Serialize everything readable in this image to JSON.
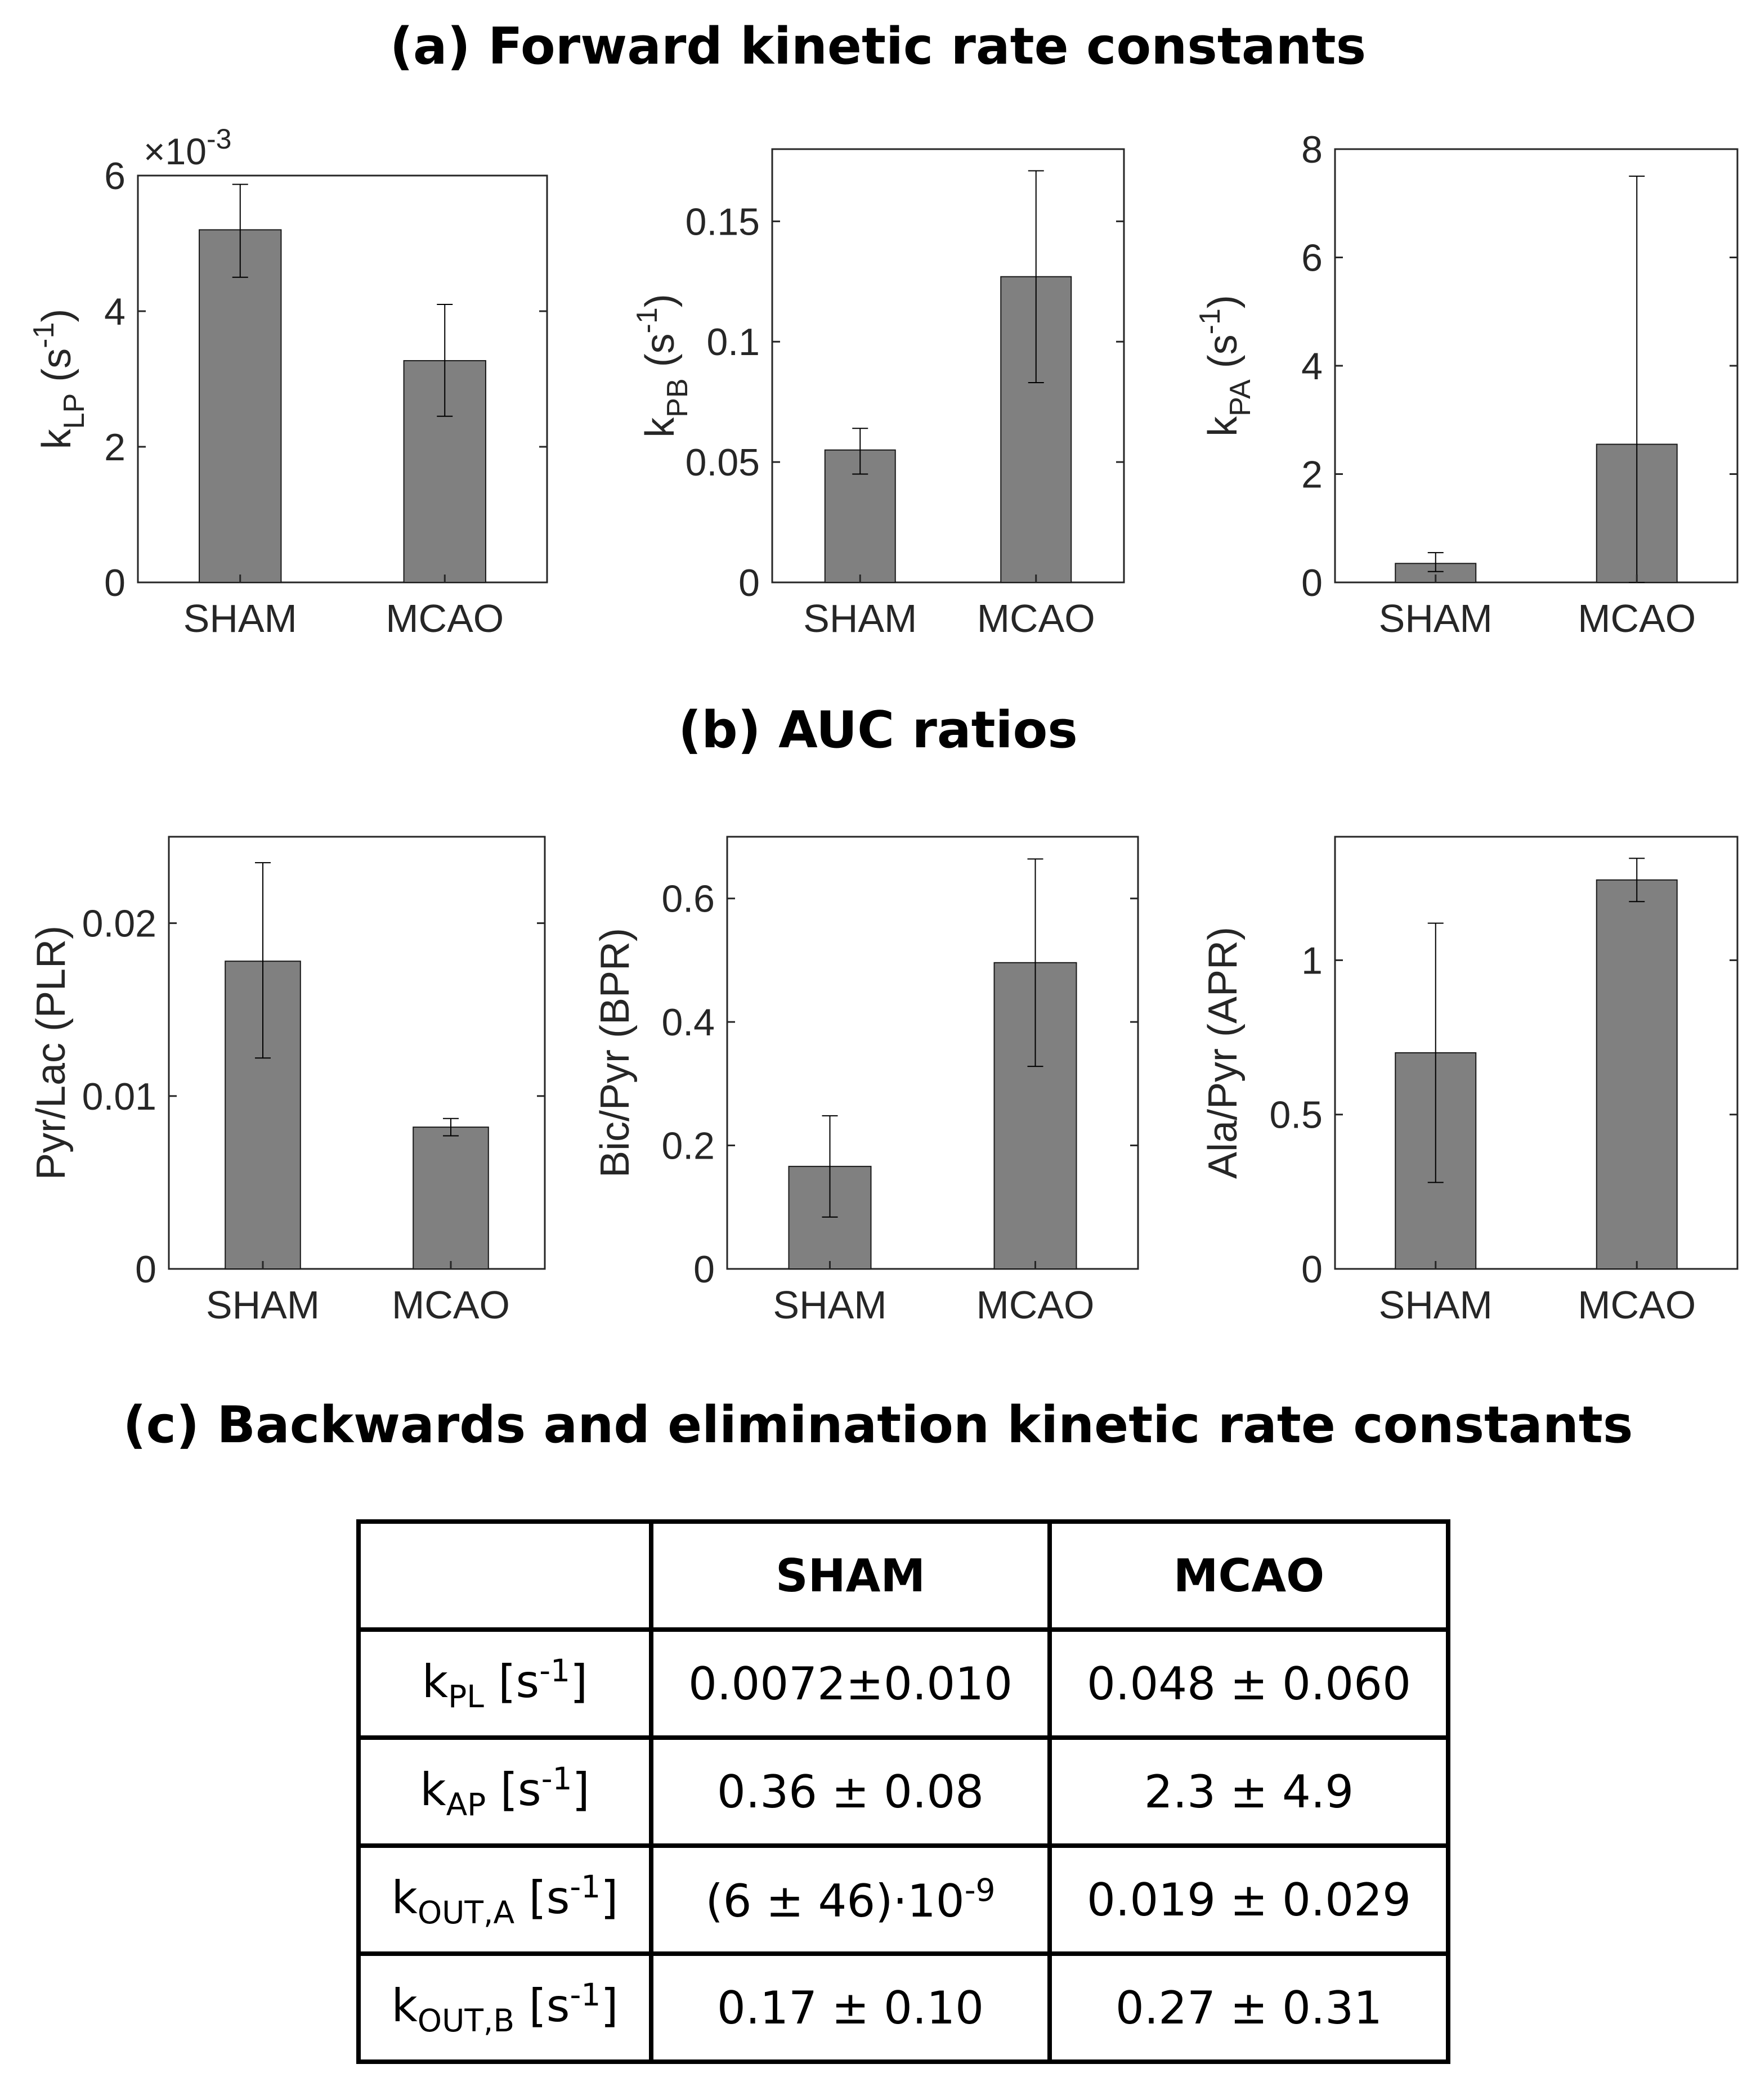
{
  "titles": {
    "a": "(a) Forward kinetic rate constants",
    "b": "(b) AUC ratios",
    "c": "(c) Backwards and elimination kinetic rate constants"
  },
  "colors": {
    "bar": "#808080",
    "axis": "#262626"
  },
  "chart_data": [
    {
      "type": "bar",
      "id": "kLP",
      "title": "",
      "categories": [
        "SHAM",
        "MCAO"
      ],
      "values": [
        5.2,
        3.27
      ],
      "errors": [
        [
          4.5,
          5.87
        ],
        [
          2.45,
          4.1
        ]
      ],
      "ylim": [
        0,
        6
      ],
      "yticks": [
        0,
        2,
        4,
        6
      ],
      "tick_labels": [
        "0",
        "2",
        "4",
        "6"
      ],
      "exponent": "×10",
      "exponent_power": "-3",
      "ylabel": {
        "base": "k",
        "sub": "LP",
        "mid": " (s",
        "sup": "-1",
        "end": ")"
      }
    },
    {
      "type": "bar",
      "id": "kPB",
      "title": "",
      "categories": [
        "SHAM",
        "MCAO"
      ],
      "values": [
        0.055,
        0.127
      ],
      "errors": [
        [
          0.045,
          0.064
        ],
        [
          0.083,
          0.171
        ]
      ],
      "ylim": [
        0,
        0.18
      ],
      "yticks": [
        0,
        0.05,
        0.1,
        0.15
      ],
      "tick_labels": [
        "0",
        "0.05",
        "0.1",
        "0.15"
      ],
      "ylabel": {
        "base": "k",
        "sub": "PB",
        "mid": " (s",
        "sup": "-1",
        "end": ")"
      }
    },
    {
      "type": "bar",
      "id": "kPA",
      "title": "",
      "categories": [
        "SHAM",
        "MCAO"
      ],
      "values": [
        0.35,
        2.55
      ],
      "errors": [
        [
          0.2,
          0.55
        ],
        [
          0,
          7.5
        ]
      ],
      "ylim": [
        0,
        8
      ],
      "yticks": [
        0,
        2,
        4,
        6,
        8
      ],
      "tick_labels": [
        "0",
        "2",
        "4",
        "6",
        "8"
      ],
      "ylabel": {
        "base": "k",
        "sub": "PA",
        "mid": " (s",
        "sup": "-1",
        "end": ")"
      }
    },
    {
      "type": "bar",
      "id": "PLR",
      "title": "",
      "categories": [
        "SHAM",
        "MCAO"
      ],
      "values": [
        0.0178,
        0.0082
      ],
      "errors": [
        [
          0.0122,
          0.0235
        ],
        [
          0.0077,
          0.0087
        ]
      ],
      "ylim": [
        0,
        0.025
      ],
      "yticks": [
        0,
        0.01,
        0.02
      ],
      "tick_labels": [
        "0",
        "0.01",
        "0.02"
      ],
      "ylabel": {
        "base": "Pyr/Lac (PLR)"
      }
    },
    {
      "type": "bar",
      "id": "BPR",
      "title": "",
      "categories": [
        "SHAM",
        "MCAO"
      ],
      "values": [
        0.166,
        0.496
      ],
      "errors": [
        [
          0.084,
          0.248
        ],
        [
          0.328,
          0.664
        ]
      ],
      "ylim": [
        0,
        0.7
      ],
      "yticks": [
        0,
        0.2,
        0.4,
        0.6
      ],
      "tick_labels": [
        "0",
        "0.2",
        "0.4",
        "0.6"
      ],
      "ylabel": {
        "base": "Bic/Pyr (BPR)"
      }
    },
    {
      "type": "bar",
      "id": "APR",
      "title": "",
      "categories": [
        "SHAM",
        "MCAO"
      ],
      "values": [
        0.7,
        1.26
      ],
      "errors": [
        [
          0.28,
          1.12
        ],
        [
          1.19,
          1.33
        ]
      ],
      "ylim": [
        0,
        1.4
      ],
      "yticks": [
        0,
        0.5,
        1
      ],
      "tick_labels": [
        "0",
        "0.5",
        "1"
      ],
      "ylabel": {
        "base": "Ala/Pyr (APR)"
      }
    }
  ],
  "table": {
    "headers": [
      "",
      "SHAM",
      "MCAO"
    ],
    "rows": [
      {
        "param": "k",
        "param_sub": "PL",
        "unit": " [s",
        "unit_sup": "-1",
        "unit_end": "]",
        "sham": "0.0072±0.010",
        "mcao": "0.048 ± 0.060"
      },
      {
        "param": "k",
        "param_sub": "AP",
        "unit": " [s",
        "unit_sup": "-1",
        "unit_end": "]",
        "sham": "0.36 ± 0.08",
        "mcao": "2.3 ± 4.9"
      },
      {
        "param": "k",
        "param_sub": "OUT,A",
        "unit": " [s",
        "unit_sup": "-1",
        "unit_end": "]",
        "sham": "(6 ± 46)·10",
        "sham_sup": "-9",
        "mcao": "0.019 ± 0.029"
      },
      {
        "param": "k",
        "param_sub": "OUT,B",
        "unit": " [s",
        "unit_sup": "-1",
        "unit_end": "]",
        "sham": "0.17 ± 0.10",
        "mcao": "0.27 ± 0.31"
      }
    ]
  }
}
